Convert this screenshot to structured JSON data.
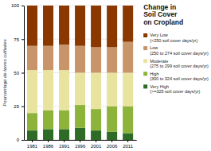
{
  "chart_data": {
    "type": "bar",
    "stacked": true,
    "title": "Change in\nSoil Cover\non Cropland",
    "y_label": "Pourcentage de terres cultivées",
    "categories": [
      "1981",
      "1986",
      "1991",
      "1996",
      "2001",
      "2006",
      "2011"
    ],
    "series": [
      {
        "name": "Very High\n(>=325 soil cover days/yr)",
        "color": "#2d6b27",
        "values": [
          7,
          8,
          8,
          9,
          7,
          6,
          5
        ]
      },
      {
        "name": "High\n(300 to 324 soil cover days/yr)",
        "color": "#8db33a",
        "values": [
          13,
          14,
          14,
          17,
          16,
          19,
          20
        ]
      },
      {
        "name": "Moderate\n(275 to 299 soil cover days/yr)",
        "color": "#e8e4a0",
        "values": [
          32,
          30,
          30,
          24,
          27,
          25,
          25
        ]
      },
      {
        "name": "Low\n(250 to 274 soil cover days/yr)",
        "color": "#c8956a",
        "values": [
          18,
          18,
          19,
          20,
          19,
          19,
          23
        ]
      },
      {
        "name": "Very Low\n(<250 soil cover days/yr)",
        "color": "#8b3800",
        "values": [
          30,
          30,
          29,
          30,
          31,
          31,
          27
        ]
      }
    ],
    "ylim": [
      0,
      100
    ],
    "yticks": [
      0,
      25,
      50,
      75,
      100
    ],
    "grid": true,
    "legend": "right"
  }
}
